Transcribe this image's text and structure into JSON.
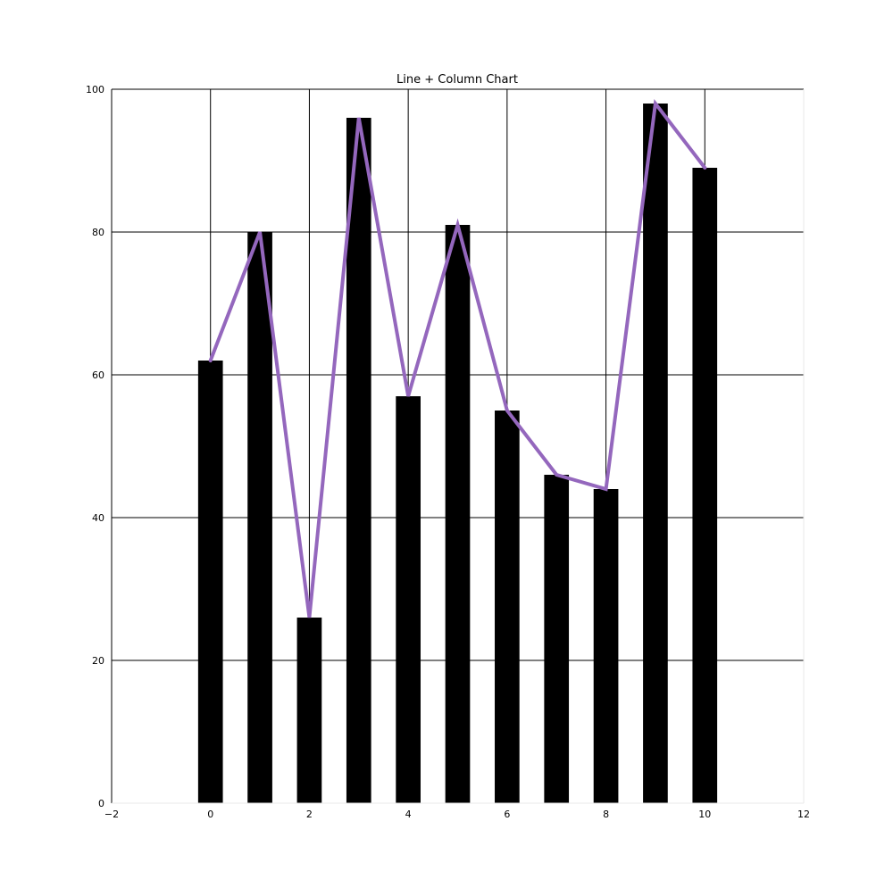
{
  "chart_data": {
    "type": "bar",
    "title": "Line + Column Chart",
    "xlabel": "",
    "ylabel": "",
    "x": [
      0,
      1,
      2,
      3,
      4,
      5,
      6,
      7,
      8,
      9,
      10
    ],
    "series": [
      {
        "kind": "bar",
        "values": [
          62,
          80,
          26,
          96,
          57,
          81,
          55,
          46,
          44,
          98,
          89
        ]
      },
      {
        "kind": "line",
        "values": [
          62,
          80,
          26,
          96,
          57,
          81,
          55,
          46,
          44,
          98,
          89
        ]
      }
    ],
    "xlim": [
      -2,
      12
    ],
    "ylim": [
      0,
      100
    ],
    "xticks": [
      -2,
      0,
      2,
      4,
      6,
      8,
      10,
      12
    ],
    "yticks": [
      0,
      20,
      40,
      60,
      80,
      100
    ],
    "xtick_labels": [
      "−2",
      "0",
      "2",
      "4",
      "6",
      "8",
      "10",
      "12"
    ],
    "ytick_labels": [
      "0",
      "20",
      "40",
      "60",
      "80",
      "100"
    ],
    "grid": true,
    "bar_width": 0.5,
    "colors": {
      "bar": "#000000",
      "line": "#9467bd",
      "grid": "#000000",
      "axis": "#000000"
    }
  }
}
